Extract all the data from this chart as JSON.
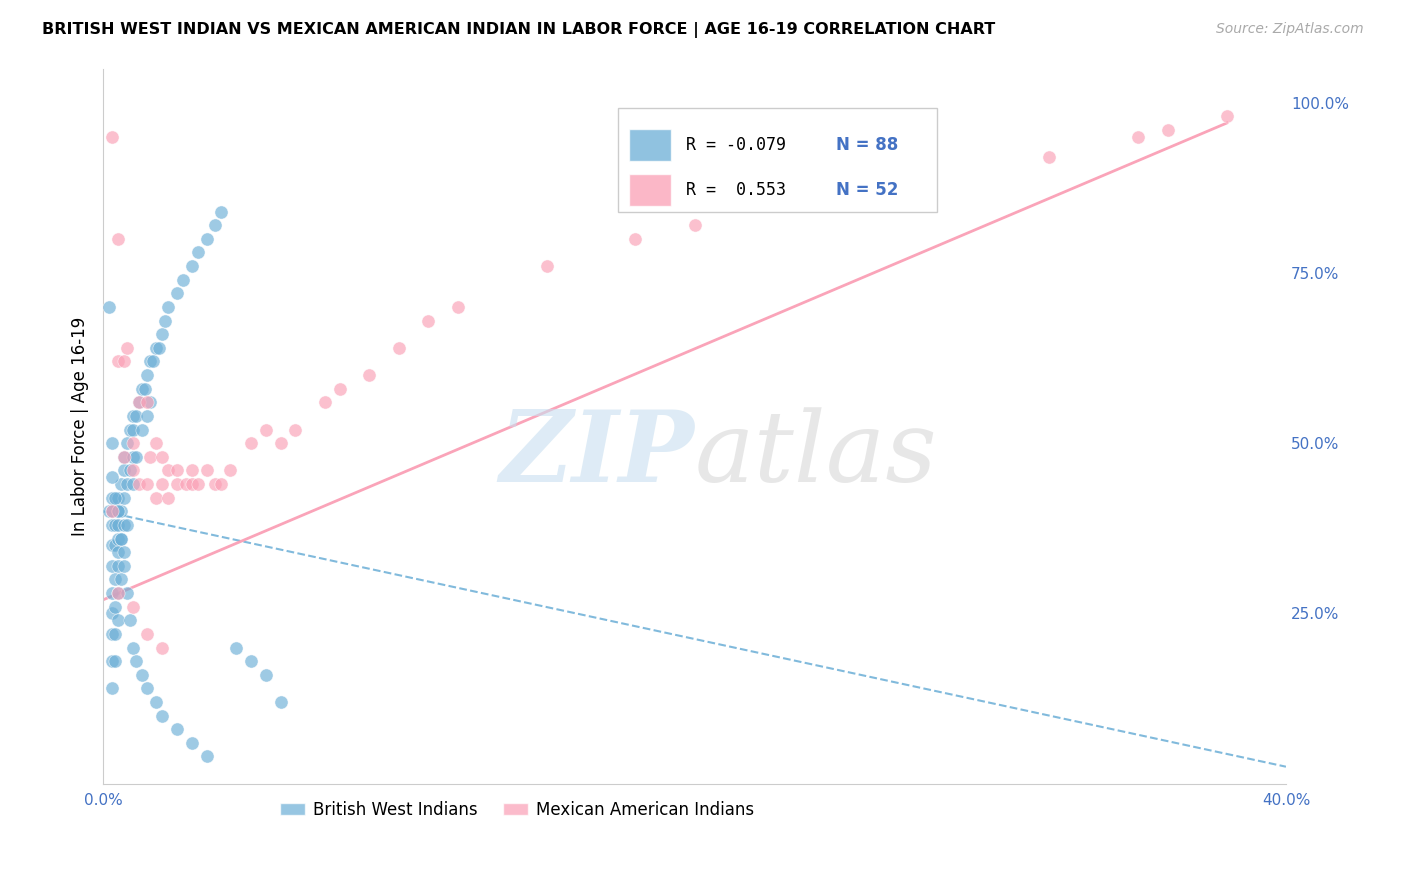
{
  "title": "BRITISH WEST INDIAN VS MEXICAN AMERICAN INDIAN IN LABOR FORCE | AGE 16-19 CORRELATION CHART",
  "source": "Source: ZipAtlas.com",
  "ylabel": "In Labor Force | Age 16-19",
  "xlim": [
    0.0,
    0.4
  ],
  "ylim": [
    0.0,
    1.05
  ],
  "x_ticks": [
    0.0,
    0.05,
    0.1,
    0.15,
    0.2,
    0.25,
    0.3,
    0.35,
    0.4
  ],
  "x_tick_labels": [
    "0.0%",
    "",
    "",
    "",
    "",
    "",
    "",
    "",
    "40.0%"
  ],
  "y_ticks_right": [
    0.0,
    0.25,
    0.5,
    0.75,
    1.0
  ],
  "y_tick_labels_right": [
    "",
    "25.0%",
    "50.0%",
    "75.0%",
    "100.0%"
  ],
  "color_blue": "#6baed6",
  "color_pink": "#fa9fb5",
  "blue_scatter_x": [
    0.002,
    0.002,
    0.003,
    0.003,
    0.003,
    0.003,
    0.003,
    0.003,
    0.003,
    0.003,
    0.003,
    0.003,
    0.004,
    0.004,
    0.004,
    0.004,
    0.004,
    0.004,
    0.005,
    0.005,
    0.005,
    0.005,
    0.005,
    0.005,
    0.005,
    0.005,
    0.006,
    0.006,
    0.006,
    0.006,
    0.007,
    0.007,
    0.007,
    0.007,
    0.007,
    0.008,
    0.008,
    0.008,
    0.009,
    0.009,
    0.01,
    0.01,
    0.01,
    0.01,
    0.011,
    0.011,
    0.012,
    0.013,
    0.013,
    0.014,
    0.015,
    0.015,
    0.016,
    0.016,
    0.017,
    0.018,
    0.019,
    0.02,
    0.021,
    0.022,
    0.025,
    0.027,
    0.03,
    0.032,
    0.035,
    0.038,
    0.04,
    0.045,
    0.05,
    0.055,
    0.06,
    0.003,
    0.003,
    0.004,
    0.005,
    0.006,
    0.007,
    0.008,
    0.009,
    0.01,
    0.011,
    0.013,
    0.015,
    0.018,
    0.02,
    0.025,
    0.03,
    0.035
  ],
  "blue_scatter_y": [
    0.4,
    0.7,
    0.38,
    0.4,
    0.42,
    0.35,
    0.32,
    0.28,
    0.25,
    0.22,
    0.18,
    0.14,
    0.38,
    0.35,
    0.3,
    0.26,
    0.22,
    0.18,
    0.42,
    0.4,
    0.38,
    0.36,
    0.34,
    0.32,
    0.28,
    0.24,
    0.44,
    0.4,
    0.36,
    0.3,
    0.48,
    0.46,
    0.42,
    0.38,
    0.34,
    0.5,
    0.44,
    0.38,
    0.52,
    0.46,
    0.54,
    0.52,
    0.48,
    0.44,
    0.54,
    0.48,
    0.56,
    0.58,
    0.52,
    0.58,
    0.6,
    0.54,
    0.62,
    0.56,
    0.62,
    0.64,
    0.64,
    0.66,
    0.68,
    0.7,
    0.72,
    0.74,
    0.76,
    0.78,
    0.8,
    0.82,
    0.84,
    0.2,
    0.18,
    0.16,
    0.12,
    0.5,
    0.45,
    0.42,
    0.4,
    0.36,
    0.32,
    0.28,
    0.24,
    0.2,
    0.18,
    0.16,
    0.14,
    0.12,
    0.1,
    0.08,
    0.06,
    0.04
  ],
  "pink_scatter_x": [
    0.003,
    0.003,
    0.005,
    0.005,
    0.007,
    0.007,
    0.008,
    0.01,
    0.01,
    0.012,
    0.012,
    0.015,
    0.015,
    0.016,
    0.018,
    0.018,
    0.02,
    0.02,
    0.022,
    0.022,
    0.025,
    0.025,
    0.028,
    0.03,
    0.03,
    0.032,
    0.035,
    0.038,
    0.04,
    0.043,
    0.05,
    0.055,
    0.06,
    0.065,
    0.075,
    0.08,
    0.09,
    0.1,
    0.11,
    0.12,
    0.15,
    0.18,
    0.2,
    0.25,
    0.32,
    0.35,
    0.36,
    0.38,
    0.005,
    0.01,
    0.015,
    0.02
  ],
  "pink_scatter_y": [
    0.4,
    0.95,
    0.8,
    0.62,
    0.48,
    0.62,
    0.64,
    0.46,
    0.5,
    0.56,
    0.44,
    0.56,
    0.44,
    0.48,
    0.5,
    0.42,
    0.48,
    0.44,
    0.46,
    0.42,
    0.46,
    0.44,
    0.44,
    0.46,
    0.44,
    0.44,
    0.46,
    0.44,
    0.44,
    0.46,
    0.5,
    0.52,
    0.5,
    0.52,
    0.56,
    0.58,
    0.6,
    0.64,
    0.68,
    0.7,
    0.76,
    0.8,
    0.82,
    0.86,
    0.92,
    0.95,
    0.96,
    0.98,
    0.28,
    0.26,
    0.22,
    0.2
  ],
  "blue_line_x": [
    0.0,
    0.4
  ],
  "blue_line_y": [
    0.4,
    0.025
  ],
  "pink_line_x": [
    0.0,
    0.38
  ],
  "pink_line_y": [
    0.27,
    0.97
  ]
}
